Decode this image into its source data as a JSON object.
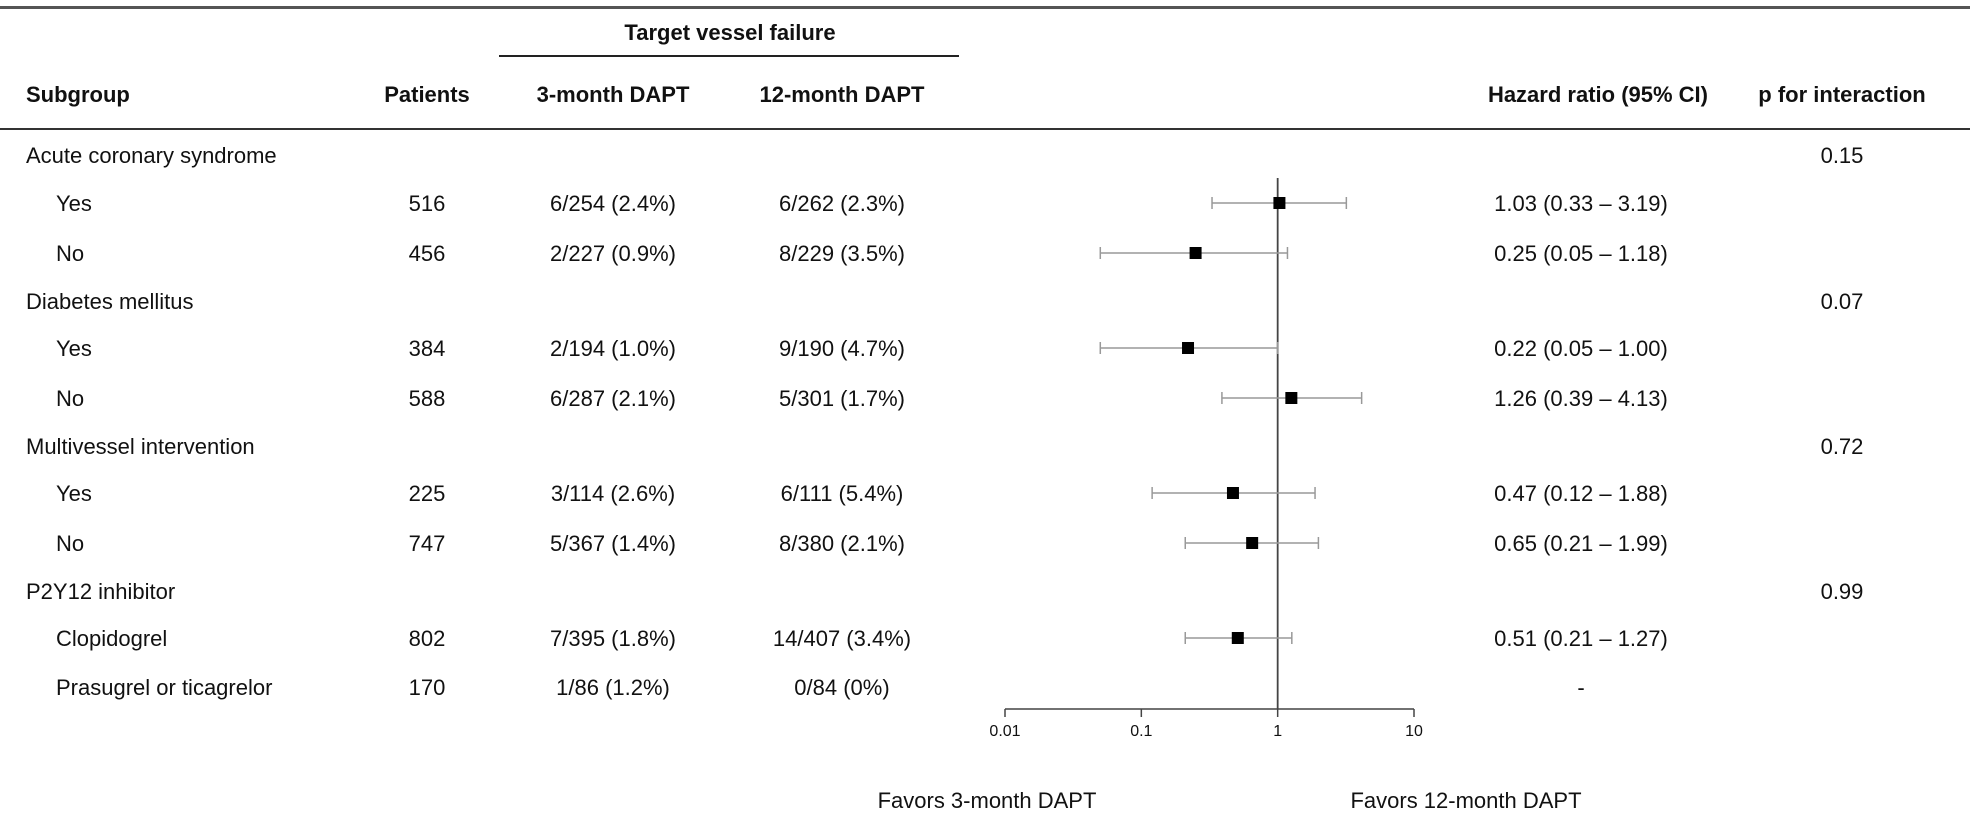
{
  "headers": {
    "group_header": "Target vessel failure",
    "subgroup": "Subgroup",
    "patients": "Patients",
    "dapt3": "3-month DAPT",
    "dapt12": "12-month DAPT",
    "hr": "Hazard ratio (95% CI)",
    "p": "p for interaction"
  },
  "rows": [
    {
      "kind": "group",
      "label": "Acute coronary syndrome",
      "p": "0.15"
    },
    {
      "kind": "sub",
      "label": "Yes",
      "patients": "516",
      "dapt3": "6/254 (2.4%)",
      "dapt12": "6/262 (2.3%)",
      "hr_text": "1.03 (0.33 – 3.19)"
    },
    {
      "kind": "sub",
      "label": "No",
      "patients": "456",
      "dapt3": "2/227 (0.9%)",
      "dapt12": "8/229 (3.5%)",
      "hr_text": "0.25 (0.05 – 1.18)"
    },
    {
      "kind": "group",
      "label": "Diabetes mellitus",
      "p": "0.07"
    },
    {
      "kind": "sub",
      "label": "Yes",
      "patients": "384",
      "dapt3": "2/194 (1.0%)",
      "dapt12": "9/190 (4.7%)",
      "hr_text": "0.22 (0.05 – 1.00)"
    },
    {
      "kind": "sub",
      "label": "No",
      "patients": "588",
      "dapt3": "6/287 (2.1%)",
      "dapt12": "5/301 (1.7%)",
      "hr_text": "1.26 (0.39 – 4.13)"
    },
    {
      "kind": "group",
      "label": "Multivessel intervention",
      "p": "0.72"
    },
    {
      "kind": "sub",
      "label": "Yes",
      "patients": "225",
      "dapt3": "3/114 (2.6%)",
      "dapt12": "6/111 (5.4%)",
      "hr_text": "0.47 (0.12 – 1.88)"
    },
    {
      "kind": "sub",
      "label": "No",
      "patients": "747",
      "dapt3": "5/367 (1.4%)",
      "dapt12": "8/380 (2.1%)",
      "hr_text": "0.65 (0.21 – 1.99)"
    },
    {
      "kind": "group",
      "label": "P2Y12 inhibitor",
      "p": "0.99"
    },
    {
      "kind": "sub",
      "label": "Clopidogrel",
      "patients": "802",
      "dapt3": "7/395 (1.8%)",
      "dapt12": "14/407 (3.4%)",
      "hr_text": "0.51 (0.21 – 1.27)"
    },
    {
      "kind": "sub",
      "label": "Prasugrel or ticagrelor",
      "patients": "170",
      "dapt3": "1/86 (1.2%)",
      "dapt12": "0/84 (0%)",
      "hr_text": "-"
    }
  ],
  "favors": {
    "left": "Favors 3-month DAPT",
    "right": "Favors 12-month DAPT"
  },
  "colors": {
    "marker": "#000000",
    "ci_line": "#999999",
    "axis": "#444444"
  },
  "chart_data": {
    "type": "forest",
    "x_scale": "log",
    "x_range": [
      0.01,
      10
    ],
    "x_ticks": [
      0.01,
      0.1,
      1,
      10
    ],
    "x_tick_labels": [
      "0.01",
      "0.1",
      "1",
      "10"
    ],
    "reference_line": 1,
    "series": [
      {
        "label": "Acute coronary syndrome: Yes",
        "hr": 1.03,
        "lo": 0.33,
        "hi": 3.19
      },
      {
        "label": "Acute coronary syndrome: No",
        "hr": 0.25,
        "lo": 0.05,
        "hi": 1.18
      },
      {
        "label": "Diabetes mellitus: Yes",
        "hr": 0.22,
        "lo": 0.05,
        "hi": 1.0
      },
      {
        "label": "Diabetes mellitus: No",
        "hr": 1.26,
        "lo": 0.39,
        "hi": 4.13
      },
      {
        "label": "Multivessel intervention: Yes",
        "hr": 0.47,
        "lo": 0.12,
        "hi": 1.88
      },
      {
        "label": "Multivessel intervention: No",
        "hr": 0.65,
        "lo": 0.21,
        "hi": 1.99
      },
      {
        "label": "P2Y12 inhibitor: Clopidogrel",
        "hr": 0.51,
        "lo": 0.21,
        "hi": 1.27
      }
    ]
  }
}
